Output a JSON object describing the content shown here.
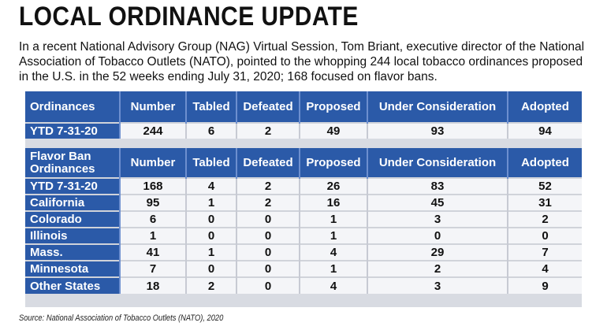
{
  "title": "LOCAL ORDINANCE UPDATE",
  "intro": "In a recent National Advisory Group (NAG) Virtual Session, Tom Briant, executive director of the National Association of Tobacco Outlets (NATO), pointed to the whopping 244 local tobacco ordinances proposed in the U.S. in the 52 weeks ending July 31, 2020; 168 focused on flavor bans.",
  "table1": {
    "headers": [
      "Ordinances",
      "Number",
      "Tabled",
      "Defeated",
      "Proposed",
      "Under Consideration",
      "Adopted"
    ],
    "rows": [
      [
        "YTD 7-31-20",
        "244",
        "6",
        "2",
        "49",
        "93",
        "94"
      ]
    ]
  },
  "table2": {
    "headers": [
      "Flavor Ban Ordinances",
      "Number",
      "Tabled",
      "Defeated",
      "Proposed",
      "Under Consideration",
      "Adopted"
    ],
    "rows": [
      [
        "YTD 7-31-20",
        "168",
        "4",
        "2",
        "26",
        "83",
        "52"
      ],
      [
        "California",
        "95",
        "1",
        "2",
        "16",
        "45",
        "31"
      ],
      [
        "Colorado",
        "6",
        "0",
        "0",
        "1",
        "3",
        "2"
      ],
      [
        "Illinois",
        "1",
        "0",
        "0",
        "1",
        "0",
        "0"
      ],
      [
        "Mass.",
        "41",
        "1",
        "0",
        "4",
        "29",
        "7"
      ],
      [
        "Minnesota",
        "7",
        "0",
        "0",
        "1",
        "2",
        "4"
      ],
      [
        "Other States",
        "18",
        "2",
        "0",
        "4",
        "3",
        "9"
      ]
    ]
  },
  "source": "Source: National Association of Tobacco Outlets (NATO), 2020",
  "colors": {
    "header_blue": "#2b5aa8",
    "cell_bg": "#f4f5f8",
    "panel_bg": "#d8dbe2"
  }
}
